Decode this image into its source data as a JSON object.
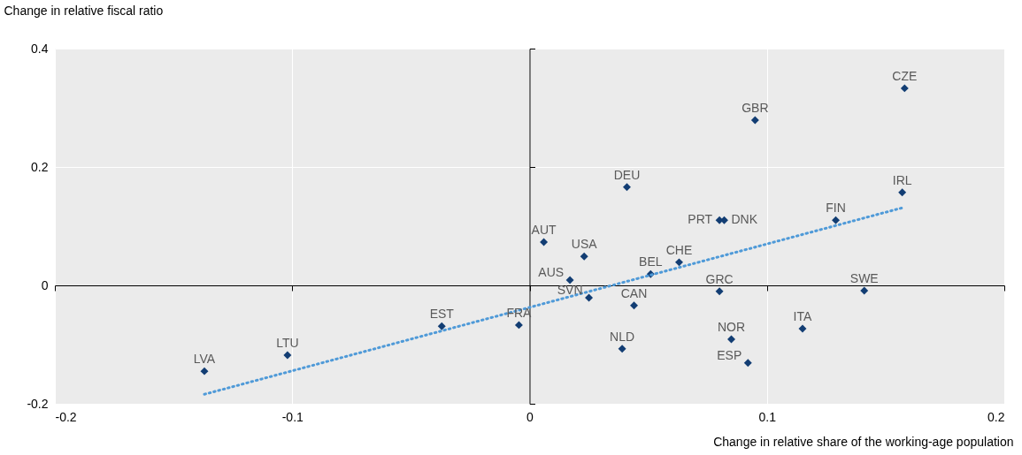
{
  "chart_data": {
    "type": "scatter",
    "xlabel": "Change in relative share of the working-age population",
    "ylabel": "Change in relative fiscal ratio",
    "xlim": [
      -0.2,
      0.2
    ],
    "xticks": [
      -0.2,
      -0.1,
      0,
      0.1,
      0.2
    ],
    "ylim": [
      -0.2,
      0.4
    ],
    "yticks": [
      -0.2,
      0,
      0.2,
      0.4
    ],
    "grid": true,
    "marker": "diamond",
    "series": [
      {
        "name": "LVA",
        "color": "#123d73",
        "x": [
          -0.137
        ],
        "values": [
          -0.145
        ]
      },
      {
        "name": "LTU",
        "color": "#123d73",
        "x": [
          -0.102
        ],
        "values": [
          -0.118
        ]
      },
      {
        "name": "EST",
        "color": "#123d73",
        "x": [
          -0.037
        ],
        "values": [
          -0.069
        ]
      },
      {
        "name": "FRA",
        "color": "#123d73",
        "x": [
          -0.0045
        ],
        "values": [
          -0.067
        ]
      },
      {
        "name": "AUT",
        "color": "#123d73",
        "x": [
          0.006
        ],
        "values": [
          0.073
        ]
      },
      {
        "name": "AUS",
        "color": "#123d73",
        "x": [
          0.017
        ],
        "values": [
          0.009
        ]
      },
      {
        "name": "USA",
        "color": "#123d73",
        "x": [
          0.023
        ],
        "values": [
          0.049
        ]
      },
      {
        "name": "SVN",
        "color": "#123d73",
        "x": [
          0.025
        ],
        "values": [
          -0.021
        ]
      },
      {
        "name": "DEU",
        "color": "#123d73",
        "x": [
          0.041
        ],
        "values": [
          0.166
        ]
      },
      {
        "name": "NLD",
        "color": "#123d73",
        "x": [
          0.039
        ],
        "values": [
          -0.107
        ]
      },
      {
        "name": "CAN",
        "color": "#123d73",
        "x": [
          0.044
        ],
        "values": [
          -0.034
        ]
      },
      {
        "name": "BEL",
        "color": "#123d73",
        "x": [
          0.051
        ],
        "values": [
          0.019
        ]
      },
      {
        "name": "CHE",
        "color": "#123d73",
        "x": [
          0.063
        ],
        "values": [
          0.039
        ]
      },
      {
        "name": "GRC",
        "color": "#123d73",
        "x": [
          0.08
        ],
        "values": [
          -0.01
        ]
      },
      {
        "name": "PRT",
        "color": "#123d73",
        "x": [
          0.08
        ],
        "values": [
          0.11
        ]
      },
      {
        "name": "DNK",
        "color": "#123d73",
        "x": [
          0.082
        ],
        "values": [
          0.11
        ]
      },
      {
        "name": "NOR",
        "color": "#123d73",
        "x": [
          0.085
        ],
        "values": [
          -0.091
        ]
      },
      {
        "name": "ESP",
        "color": "#123d73",
        "x": [
          0.092
        ],
        "values": [
          -0.131
        ]
      },
      {
        "name": "GBR",
        "color": "#123d73",
        "x": [
          0.095
        ],
        "values": [
          0.279
        ]
      },
      {
        "name": "ITA",
        "color": "#123d73",
        "x": [
          0.115
        ],
        "values": [
          -0.073
        ]
      },
      {
        "name": "FIN",
        "color": "#123d73",
        "x": [
          0.129
        ],
        "values": [
          0.11
        ]
      },
      {
        "name": "SWE",
        "color": "#123d73",
        "x": [
          0.141
        ],
        "values": [
          -0.009
        ]
      },
      {
        "name": "IRL",
        "color": "#123d73",
        "x": [
          0.157
        ],
        "values": [
          0.157
        ]
      },
      {
        "name": "CZE",
        "color": "#123d73",
        "x": [
          0.158
        ],
        "values": [
          0.333
        ]
      },
      {
        "type": "line",
        "color": "#4f9ad8",
        "line_style": "dotted",
        "marker": "none",
        "x": [
          -0.137,
          0.157
        ],
        "values": [
          -0.184,
          0.131
        ]
      }
    ]
  }
}
